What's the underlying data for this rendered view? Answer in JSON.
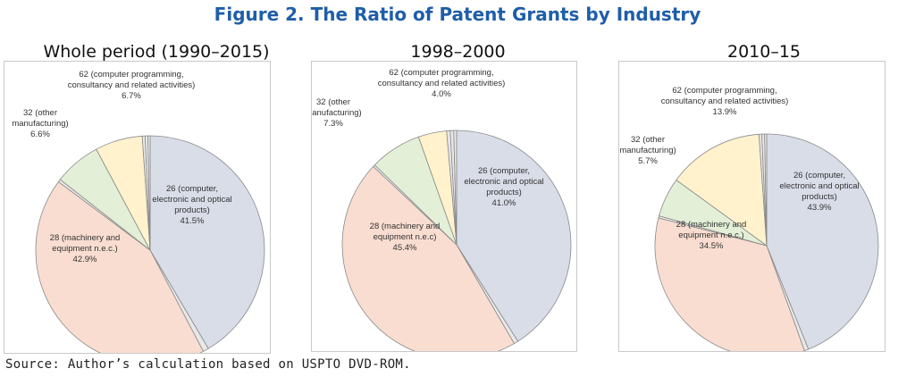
{
  "figure_title": "Figure 2. The Ratio of Patent Grants by Industry",
  "source_note": "Source: Author’s calculation based on USPTO DVD-ROM.",
  "colors": {
    "title": "#1f5ea8",
    "computer_electronic_optical": "#d9dde8",
    "machinery": "#f9ddd0",
    "other_manufacturing": "#e3efd7",
    "computer_programming": "#fff2cc",
    "small_industries": "#e8e8e8"
  },
  "chart_data": [
    {
      "type": "pie",
      "title": "Whole period (1990–2015)",
      "slices": [
        {
          "category": "26",
          "label_lines": [
            "26 (computer,",
            "electronic and optical",
            "products)",
            "41.5%"
          ],
          "value": 41.5,
          "color": "#d9dde8"
        },
        {
          "category": "small",
          "label_lines": [],
          "value": 0.8,
          "color": "#e8e8e8"
        },
        {
          "category": "28",
          "label_lines": [
            "28 (machinery and",
            "equipment n.e.c.)",
            "42.9%"
          ],
          "value": 42.9,
          "color": "#f9ddd0"
        },
        {
          "category": "small",
          "label_lines": [],
          "value": 0.4,
          "color": "#e8e8e8"
        },
        {
          "category": "32",
          "label_lines": [
            "32 (other",
            "manufacturing)",
            "6.6%"
          ],
          "value": 6.6,
          "color": "#e3efd7"
        },
        {
          "category": "62",
          "label_lines": [
            "62 (computer programming,",
            "consultancy and related activities)",
            "6.7%"
          ],
          "value": 6.7,
          "color": "#fff2cc"
        },
        {
          "category": "small",
          "label_lines": [],
          "value": 0.4,
          "color": "#e8e8e8"
        },
        {
          "category": "small",
          "label_lines": [],
          "value": 0.4,
          "color": "#e8e8e8"
        },
        {
          "category": "small",
          "label_lines": [],
          "value": 0.3,
          "color": "#e8e8e8"
        }
      ]
    },
    {
      "type": "pie",
      "title": "1998–2000",
      "slices": [
        {
          "category": "26",
          "label_lines": [
            "26 (computer,",
            "electronic and optical",
            "products)",
            "41.0%"
          ],
          "value": 41.0,
          "color": "#d9dde8"
        },
        {
          "category": "small",
          "label_lines": [],
          "value": 0.6,
          "color": "#e8e8e8"
        },
        {
          "category": "28",
          "label_lines": [
            "28 (machinery and",
            "equipment n.e.c)",
            "45.4%"
          ],
          "value": 45.4,
          "color": "#f9ddd0"
        },
        {
          "category": "small",
          "label_lines": [],
          "value": 0.3,
          "color": "#e8e8e8"
        },
        {
          "category": "32",
          "label_lines": [
            "32 (other",
            "manufacturing)",
            "7.3%"
          ],
          "value": 7.3,
          "color": "#e3efd7"
        },
        {
          "category": "62",
          "label_lines": [
            "62 (computer programming,",
            "consultancy and related activities)",
            "4.0%"
          ],
          "value": 4.0,
          "color": "#fff2cc"
        },
        {
          "category": "small",
          "label_lines": [],
          "value": 0.5,
          "color": "#e8e8e8"
        },
        {
          "category": "small",
          "label_lines": [],
          "value": 0.5,
          "color": "#e8e8e8"
        },
        {
          "category": "small",
          "label_lines": [],
          "value": 0.4,
          "color": "#e8e8e8"
        }
      ]
    },
    {
      "type": "pie",
      "title": "2010–15",
      "slices": [
        {
          "category": "26",
          "label_lines": [
            "26 (computer,",
            "electronic and optical",
            "products)",
            "43.9%"
          ],
          "value": 43.9,
          "color": "#d9dde8"
        },
        {
          "category": "small",
          "label_lines": [],
          "value": 0.6,
          "color": "#e8e8e8"
        },
        {
          "category": "28",
          "label_lines": [
            "28 (machinery and",
            "equipment n.e.c.)",
            "34.5%"
          ],
          "value": 34.5,
          "color": "#f9ddd0"
        },
        {
          "category": "small",
          "label_lines": [],
          "value": 0.3,
          "color": "#e8e8e8"
        },
        {
          "category": "32",
          "label_lines": [
            "32 (other",
            "manufacturing)",
            "5.7%"
          ],
          "value": 5.7,
          "color": "#e3efd7"
        },
        {
          "category": "62",
          "label_lines": [
            "62 (computer programming,",
            "consultancy and related activities)",
            "13.9%"
          ],
          "value": 13.9,
          "color": "#fff2cc"
        },
        {
          "category": "small",
          "label_lines": [],
          "value": 0.4,
          "color": "#e8e8e8"
        },
        {
          "category": "small",
          "label_lines": [],
          "value": 0.4,
          "color": "#e8e8e8"
        },
        {
          "category": "small",
          "label_lines": [],
          "value": 0.3,
          "color": "#e8e8e8"
        }
      ]
    }
  ]
}
